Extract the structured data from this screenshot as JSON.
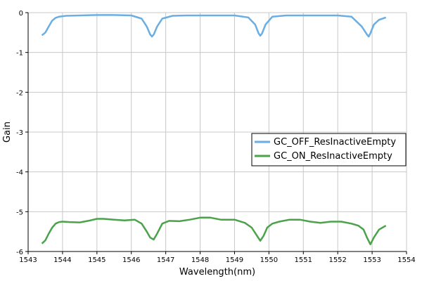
{
  "chart_data": {
    "type": "line",
    "title": "",
    "xlabel": "Wavelength(nm)",
    "ylabel": "Gain",
    "xlim": [
      1543,
      1554
    ],
    "ylim": [
      -6,
      0
    ],
    "xticks": [
      1543,
      1544,
      1545,
      1546,
      1547,
      1548,
      1549,
      1550,
      1551,
      1552,
      1553,
      1554
    ],
    "yticks": [
      0,
      -1,
      -2,
      -3,
      -4,
      -5,
      -6
    ],
    "grid": true,
    "legend_position": "right",
    "series": [
      {
        "name": "GC_OFF_ResInactiveEmpty",
        "color": "#6aaee3",
        "x": [
          1543.4,
          1543.5,
          1543.6,
          1543.7,
          1543.8,
          1543.9,
          1544.1,
          1544.5,
          1545.0,
          1545.5,
          1546.0,
          1546.3,
          1546.45,
          1546.55,
          1546.6,
          1546.65,
          1546.75,
          1546.9,
          1547.2,
          1547.6,
          1548.0,
          1548.5,
          1549.0,
          1549.4,
          1549.6,
          1549.7,
          1549.75,
          1549.8,
          1549.9,
          1550.1,
          1550.5,
          1551.0,
          1551.5,
          1552.0,
          1552.4,
          1552.7,
          1552.85,
          1552.9,
          1552.95,
          1553.05,
          1553.2,
          1553.4
        ],
        "y": [
          -0.57,
          -0.5,
          -0.35,
          -0.2,
          -0.13,
          -0.1,
          -0.08,
          -0.07,
          -0.06,
          -0.06,
          -0.07,
          -0.15,
          -0.35,
          -0.55,
          -0.6,
          -0.55,
          -0.35,
          -0.15,
          -0.08,
          -0.07,
          -0.07,
          -0.07,
          -0.07,
          -0.12,
          -0.3,
          -0.52,
          -0.58,
          -0.52,
          -0.3,
          -0.1,
          -0.07,
          -0.07,
          -0.07,
          -0.07,
          -0.1,
          -0.35,
          -0.55,
          -0.6,
          -0.52,
          -0.3,
          -0.18,
          -0.12
        ]
      },
      {
        "name": "GC_ON_ResInactiveEmpty",
        "color": "#4aa34a",
        "x": [
          1543.4,
          1543.5,
          1543.6,
          1543.7,
          1543.8,
          1543.9,
          1544.0,
          1544.2,
          1544.5,
          1544.8,
          1545.0,
          1545.2,
          1545.5,
          1545.8,
          1546.1,
          1546.3,
          1546.45,
          1546.55,
          1546.65,
          1546.75,
          1546.9,
          1547.1,
          1547.4,
          1547.7,
          1548.0,
          1548.3,
          1548.6,
          1549.0,
          1549.3,
          1549.5,
          1549.65,
          1549.75,
          1549.85,
          1549.95,
          1550.1,
          1550.3,
          1550.6,
          1550.9,
          1551.2,
          1551.5,
          1551.8,
          1552.1,
          1552.4,
          1552.6,
          1552.75,
          1552.85,
          1552.95,
          1553.05,
          1553.2,
          1553.4
        ],
        "y": [
          -5.8,
          -5.72,
          -5.55,
          -5.4,
          -5.3,
          -5.26,
          -5.25,
          -5.26,
          -5.27,
          -5.22,
          -5.18,
          -5.18,
          -5.2,
          -5.22,
          -5.2,
          -5.3,
          -5.5,
          -5.65,
          -5.7,
          -5.55,
          -5.3,
          -5.23,
          -5.24,
          -5.2,
          -5.15,
          -5.15,
          -5.2,
          -5.2,
          -5.28,
          -5.4,
          -5.6,
          -5.73,
          -5.6,
          -5.4,
          -5.3,
          -5.25,
          -5.2,
          -5.2,
          -5.25,
          -5.28,
          -5.25,
          -5.25,
          -5.3,
          -5.35,
          -5.45,
          -5.65,
          -5.82,
          -5.65,
          -5.45,
          -5.35
        ]
      }
    ]
  }
}
